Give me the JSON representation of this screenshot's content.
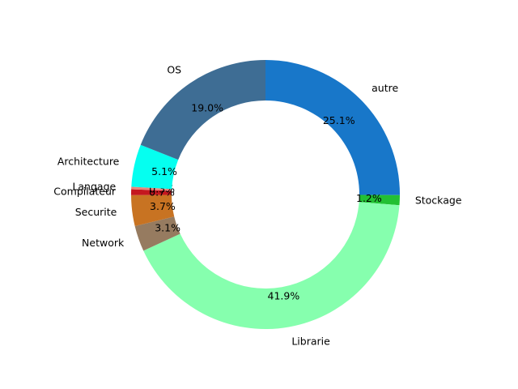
{
  "chart_data": {
    "type": "pie",
    "donut": true,
    "start_angle_deg": 90,
    "direction": "clockwise",
    "categories": [
      "autre",
      "Stockage",
      "Librarie",
      "Network",
      "Securite",
      "Compilateur",
      "Langage",
      "Architecture",
      "OS"
    ],
    "values": [
      25.1,
      1.2,
      41.9,
      3.1,
      3.7,
      0.7,
      0.3,
      5.1,
      19.0
    ],
    "percent_labels": [
      "25.1%",
      "1.2%",
      "41.9%",
      "3.1%",
      "3.7%",
      "0.7%",
      "0.3%",
      "5.1%",
      "19.0%"
    ],
    "colors": [
      "#1877c9",
      "#22c033",
      "#86ffae",
      "#967b60",
      "#c87322",
      "#c4181f",
      "#e8857b",
      "#05fff0",
      "#3e6d94"
    ]
  }
}
